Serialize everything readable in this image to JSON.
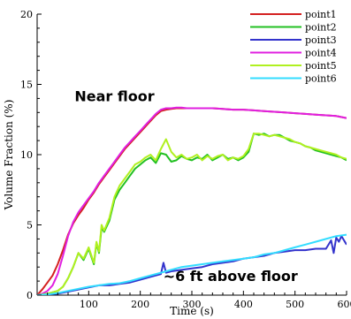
{
  "chart_data": {
    "type": "line",
    "xlabel": "Time (s)",
    "ylabel": "Volume Fraction (%)",
    "xlim": [
      0,
      600
    ],
    "ylim": [
      0,
      20
    ],
    "xticks": [
      100,
      200,
      300,
      400,
      500,
      600
    ],
    "yticks": [
      0,
      5,
      10,
      15,
      20
    ],
    "grid": false,
    "legend_position": "top-right",
    "annotations": [
      {
        "text": "Near floor",
        "x": 150,
        "y": 13.8
      },
      {
        "text": "~6 ft above floor",
        "x": 375,
        "y": 1.0
      }
    ],
    "series": [
      {
        "name": "point1",
        "color": "#d42020",
        "x": [
          0,
          10,
          20,
          30,
          40,
          50,
          60,
          70,
          80,
          90,
          100,
          110,
          120,
          130,
          140,
          150,
          160,
          170,
          180,
          190,
          200,
          210,
          220,
          230,
          240,
          250,
          260,
          270,
          280,
          290,
          300,
          320,
          340,
          360,
          380,
          400,
          420,
          440,
          460,
          480,
          500,
          520,
          540,
          560,
          580,
          600
        ],
        "y": [
          0,
          0.4,
          0.9,
          1.4,
          2.2,
          3.2,
          4.3,
          5.1,
          5.7,
          6.2,
          6.8,
          7.3,
          7.9,
          8.4,
          8.9,
          9.4,
          9.9,
          10.4,
          10.8,
          11.2,
          11.6,
          12.0,
          12.4,
          12.8,
          13.1,
          13.2,
          13.25,
          13.3,
          13.3,
          13.3,
          13.3,
          13.3,
          13.3,
          13.25,
          13.2,
          13.2,
          13.15,
          13.1,
          13.05,
          13.0,
          12.95,
          12.9,
          12.85,
          12.8,
          12.75,
          12.6
        ]
      },
      {
        "name": "point2",
        "color": "#22c022",
        "x": [
          0,
          20,
          40,
          50,
          60,
          70,
          80,
          90,
          100,
          110,
          115,
          120,
          125,
          130,
          140,
          150,
          160,
          170,
          180,
          190,
          200,
          210,
          220,
          230,
          240,
          250,
          260,
          270,
          280,
          290,
          300,
          310,
          320,
          330,
          340,
          350,
          360,
          370,
          380,
          390,
          400,
          410,
          420,
          430,
          440,
          450,
          460,
          470,
          480,
          490,
          500,
          510,
          520,
          530,
          540,
          550,
          560,
          570,
          580,
          590,
          600
        ],
        "y": [
          0,
          0.1,
          0.3,
          0.6,
          1.2,
          2.0,
          3.0,
          2.5,
          3.3,
          2.2,
          3.7,
          3.0,
          4.8,
          4.5,
          5.3,
          6.8,
          7.5,
          8.0,
          8.5,
          9.0,
          9.3,
          9.6,
          9.8,
          9.4,
          10.1,
          10.0,
          9.5,
          9.6,
          9.9,
          9.7,
          9.6,
          9.8,
          9.7,
          10.0,
          9.6,
          9.8,
          10.0,
          9.7,
          9.8,
          9.6,
          9.8,
          10.2,
          11.5,
          11.4,
          11.5,
          11.3,
          11.4,
          11.4,
          11.2,
          11.0,
          10.9,
          10.8,
          10.6,
          10.5,
          10.3,
          10.2,
          10.1,
          10.0,
          9.9,
          9.8,
          9.6
        ]
      },
      {
        "name": "point3",
        "color": "#3333cc",
        "x": [
          0,
          20,
          40,
          60,
          80,
          100,
          120,
          140,
          160,
          180,
          200,
          220,
          240,
          245,
          250,
          260,
          280,
          300,
          320,
          340,
          360,
          380,
          400,
          420,
          440,
          460,
          480,
          500,
          520,
          540,
          560,
          570,
          575,
          580,
          585,
          590,
          600
        ],
        "y": [
          0,
          0.05,
          0.1,
          0.25,
          0.4,
          0.55,
          0.7,
          0.7,
          0.8,
          0.9,
          1.1,
          1.3,
          1.5,
          2.3,
          1.6,
          1.7,
          1.8,
          1.9,
          2.0,
          2.2,
          2.3,
          2.4,
          2.6,
          2.7,
          2.8,
          3.0,
          3.1,
          3.2,
          3.2,
          3.3,
          3.3,
          3.9,
          3.0,
          4.1,
          3.8,
          4.2,
          3.6
        ]
      },
      {
        "name": "point4",
        "color": "#e020e0",
        "x": [
          0,
          10,
          20,
          30,
          40,
          50,
          60,
          70,
          80,
          90,
          100,
          110,
          120,
          130,
          140,
          150,
          160,
          170,
          180,
          190,
          200,
          210,
          220,
          230,
          240,
          250,
          260,
          270,
          280,
          290,
          300,
          320,
          340,
          360,
          380,
          400,
          420,
          440,
          460,
          480,
          500,
          520,
          540,
          560,
          580,
          600
        ],
        "y": [
          0,
          0.1,
          0.3,
          0.7,
          1.5,
          2.8,
          4.2,
          5.2,
          5.9,
          6.4,
          6.9,
          7.4,
          8.0,
          8.5,
          9.0,
          9.5,
          10.0,
          10.5,
          10.9,
          11.3,
          11.7,
          12.1,
          12.5,
          12.9,
          13.2,
          13.3,
          13.3,
          13.35,
          13.35,
          13.3,
          13.3,
          13.3,
          13.3,
          13.25,
          13.2,
          13.2,
          13.15,
          13.1,
          13.05,
          13.0,
          12.95,
          12.9,
          12.85,
          12.8,
          12.75,
          12.6
        ]
      },
      {
        "name": "point5",
        "color": "#b0f020",
        "x": [
          0,
          20,
          40,
          50,
          60,
          70,
          80,
          90,
          100,
          110,
          115,
          120,
          125,
          130,
          140,
          150,
          160,
          170,
          180,
          190,
          200,
          210,
          220,
          230,
          240,
          250,
          260,
          270,
          280,
          290,
          300,
          310,
          320,
          330,
          340,
          350,
          360,
          370,
          380,
          390,
          400,
          410,
          420,
          430,
          440,
          450,
          460,
          470,
          480,
          490,
          500,
          510,
          520,
          530,
          540,
          550,
          560,
          570,
          580,
          590,
          600
        ],
        "y": [
          0,
          0.1,
          0.3,
          0.6,
          1.2,
          2.0,
          3.0,
          2.6,
          3.4,
          2.3,
          3.8,
          3.1,
          5.0,
          4.6,
          5.5,
          7.0,
          7.8,
          8.3,
          8.8,
          9.3,
          9.5,
          9.8,
          10.0,
          9.6,
          10.4,
          11.1,
          10.2,
          9.8,
          10.0,
          9.7,
          9.8,
          10.0,
          9.6,
          9.9,
          9.7,
          9.9,
          10.0,
          9.6,
          9.8,
          9.7,
          9.9,
          10.4,
          11.5,
          11.5,
          11.4,
          11.3,
          11.4,
          11.3,
          11.2,
          11.1,
          10.9,
          10.8,
          10.6,
          10.5,
          10.4,
          10.3,
          10.2,
          10.1,
          10.0,
          9.8,
          9.7
        ]
      },
      {
        "name": "point6",
        "color": "#33ddff",
        "x": [
          0,
          20,
          40,
          60,
          80,
          100,
          120,
          140,
          160,
          180,
          200,
          220,
          240,
          260,
          280,
          300,
          320,
          340,
          360,
          380,
          400,
          420,
          440,
          460,
          480,
          500,
          520,
          540,
          560,
          580,
          600
        ],
        "y": [
          0,
          0.05,
          0.15,
          0.3,
          0.45,
          0.6,
          0.7,
          0.8,
          0.85,
          1.0,
          1.2,
          1.4,
          1.6,
          1.8,
          2.0,
          2.1,
          2.2,
          2.3,
          2.4,
          2.5,
          2.6,
          2.7,
          2.9,
          3.0,
          3.2,
          3.4,
          3.6,
          3.8,
          4.0,
          4.2,
          4.3
        ]
      }
    ]
  }
}
